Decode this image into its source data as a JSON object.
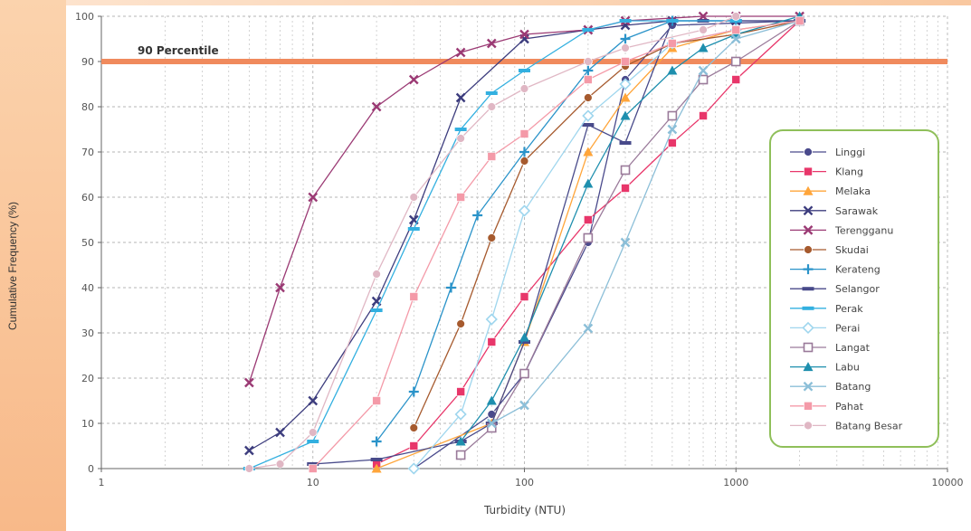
{
  "chart_data": {
    "type": "line",
    "xscale": "log",
    "xlim": [
      1,
      10000
    ],
    "ylim": [
      0,
      100
    ],
    "xticks": [
      1,
      10,
      100,
      1000,
      10000
    ],
    "yticks": [
      0,
      10,
      20,
      30,
      40,
      50,
      60,
      70,
      80,
      90,
      100
    ],
    "xlabel": "Turbidity (NTU)",
    "ylabel": "Cumulative Frequency (%)",
    "grid": true,
    "legend_position": "right",
    "reference_line": {
      "y": 90,
      "label": "90 Percentile",
      "color": "#f08a5d"
    },
    "series": [
      {
        "name": "Linggi",
        "color": "#4a4a8c",
        "marker": "circle-filled",
        "x": [
          30,
          70,
          100,
          200,
          300,
          500,
          2000
        ],
        "y": [
          0,
          12,
          21,
          50,
          86,
          98,
          99
        ]
      },
      {
        "name": "Klang",
        "color": "#e8366a",
        "marker": "square-filled",
        "x": [
          20,
          30,
          50,
          70,
          100,
          200,
          300,
          500,
          700,
          1000,
          2000
        ],
        "y": [
          1,
          5,
          17,
          28,
          38,
          55,
          62,
          72,
          78,
          86,
          99
        ]
      },
      {
        "name": "Melaka",
        "color": "#ffa53a",
        "marker": "triangle-filled",
        "x": [
          20,
          70,
          100,
          200,
          300,
          500,
          1000,
          2000
        ],
        "y": [
          0,
          10,
          28,
          70,
          82,
          93,
          97,
          99
        ]
      },
      {
        "name": "Sarawak",
        "color": "#3d3d7e",
        "marker": "x",
        "x": [
          5,
          7,
          10,
          20,
          30,
          50,
          100,
          200,
          300,
          500,
          1000,
          2000
        ],
        "y": [
          4,
          8,
          15,
          37,
          55,
          82,
          95,
          97,
          98,
          99,
          99,
          99
        ]
      },
      {
        "name": "Terengganu",
        "color": "#9b3a74",
        "marker": "x",
        "x": [
          5,
          7,
          10,
          20,
          30,
          50,
          70,
          100,
          200,
          300,
          700,
          1000,
          2000
        ],
        "y": [
          19,
          40,
          60,
          80,
          86,
          92,
          94,
          96,
          97,
          99,
          100,
          100,
          100
        ]
      },
      {
        "name": "Skudai",
        "color": "#a65a2e",
        "marker": "circle-filled",
        "x": [
          30,
          50,
          70,
          100,
          200,
          300,
          500,
          1000,
          2000
        ],
        "y": [
          9,
          32,
          51,
          68,
          82,
          89,
          94,
          96,
          99
        ]
      },
      {
        "name": "Kerateng",
        "color": "#2a93c9",
        "marker": "plus",
        "x": [
          20,
          30,
          45,
          60,
          100,
          200,
          300,
          500,
          1000
        ],
        "y": [
          6,
          17,
          40,
          56,
          70,
          88,
          95,
          99,
          99
        ]
      },
      {
        "name": "Selangor",
        "color": "#484a8a",
        "marker": "dash",
        "x": [
          10,
          20,
          50,
          70,
          100,
          200,
          300,
          500,
          700,
          1000,
          2000
        ],
        "y": [
          1,
          2,
          6,
          10,
          28,
          76,
          72,
          99,
          99,
          99,
          99
        ]
      },
      {
        "name": "Perak",
        "color": "#33b0e0",
        "marker": "dash",
        "x": [
          5,
          10,
          20,
          30,
          50,
          70,
          100,
          200,
          300,
          500,
          1000
        ],
        "y": [
          0,
          6,
          35,
          53,
          75,
          83,
          88,
          97,
          99,
          99,
          99
        ]
      },
      {
        "name": "Perai",
        "color": "#9fd6ee",
        "marker": "diamond-open",
        "x": [
          30,
          50,
          70,
          100,
          200,
          300,
          500,
          1000
        ],
        "y": [
          0,
          12,
          33,
          57,
          78,
          85,
          94,
          97
        ]
      },
      {
        "name": "Langat",
        "color": "#9a7a9a",
        "marker": "square-open",
        "x": [
          50,
          70,
          100,
          200,
          300,
          500,
          700,
          1000,
          2000
        ],
        "y": [
          3,
          9,
          21,
          51,
          66,
          78,
          86,
          90,
          99
        ]
      },
      {
        "name": "Labu",
        "color": "#1e8fae",
        "marker": "triangle-filled",
        "x": [
          50,
          70,
          100,
          200,
          300,
          500,
          700,
          1000,
          2000
        ],
        "y": [
          6,
          15,
          29,
          63,
          78,
          88,
          93,
          96,
          100
        ]
      },
      {
        "name": "Batang",
        "color": "#8cbfd8",
        "marker": "x",
        "x": [
          70,
          100,
          200,
          300,
          500,
          700,
          1000,
          2000
        ],
        "y": [
          10,
          14,
          31,
          50,
          75,
          88,
          95,
          99
        ]
      },
      {
        "name": "Pahat",
        "color": "#f49aa8",
        "marker": "square-filled",
        "x": [
          10,
          20,
          30,
          50,
          70,
          100,
          200,
          300,
          500,
          1000,
          2000
        ],
        "y": [
          0,
          15,
          38,
          60,
          69,
          74,
          86,
          90,
          94,
          97,
          99
        ]
      },
      {
        "name": "Batang Besar",
        "color": "#e0b7c4",
        "marker": "circle-filled",
        "x": [
          5,
          7,
          10,
          20,
          30,
          50,
          70,
          100,
          200,
          300,
          700,
          1000
        ],
        "y": [
          0,
          1,
          8,
          43,
          60,
          73,
          80,
          84,
          90,
          93,
          97,
          100
        ]
      }
    ]
  }
}
